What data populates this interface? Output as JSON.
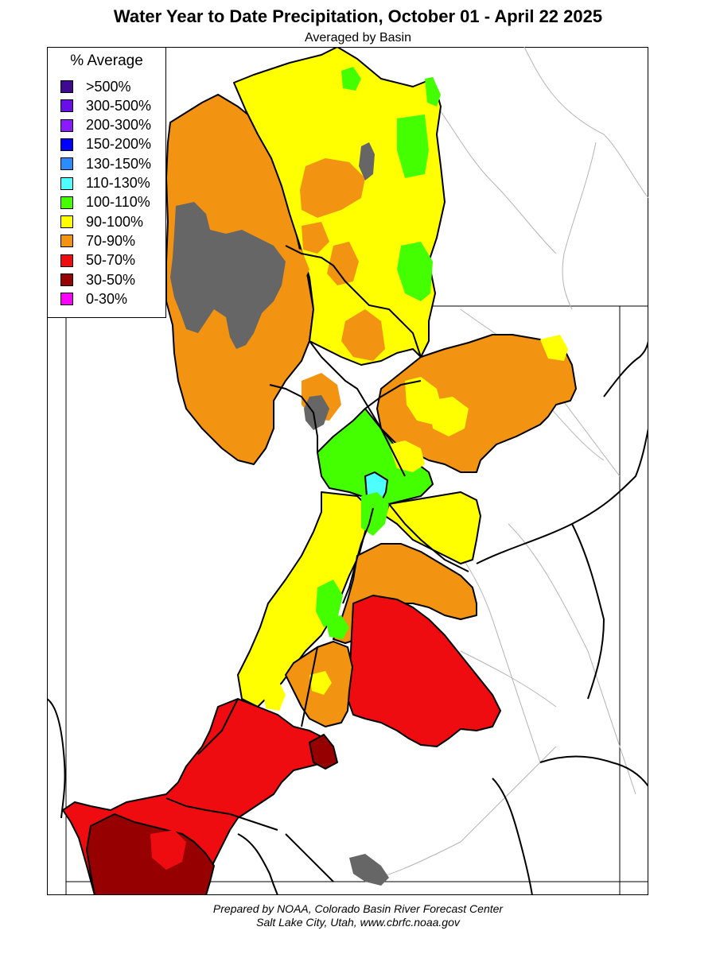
{
  "header": {
    "title": "Water Year to Date Precipitation, October 01  - April 22 2025",
    "subtitle": "Averaged by Basin"
  },
  "legend": {
    "title": "% Average",
    "items": [
      {
        "label": ">500%",
        "color": "#3d0a91"
      },
      {
        "label": "300-500%",
        "color": "#6a0ee8"
      },
      {
        "label": "200-300%",
        "color": "#8a1aff"
      },
      {
        "label": "150-200%",
        "color": "#0000ff"
      },
      {
        "label": "130-150%",
        "color": "#2a8cff"
      },
      {
        "label": "110-130%",
        "color": "#4effff"
      },
      {
        "label": "100-110%",
        "color": "#44ff00"
      },
      {
        "label": "90-100%",
        "color": "#ffff00"
      },
      {
        "label": "70-90%",
        "color": "#f29311"
      },
      {
        "label": "50-70%",
        "color": "#ee0c10"
      },
      {
        "label": "30-50%",
        "color": "#960000"
      },
      {
        "label": "0-30%",
        "color": "#ff00ff"
      }
    ]
  },
  "map": {
    "no_data_color": "#666666"
  },
  "footer": {
    "line1": "Prepared by NOAA, Colorado Basin River Forecast Center",
    "line2": "Salt Lake City, Utah, www.cbrfc.noaa.gov"
  }
}
